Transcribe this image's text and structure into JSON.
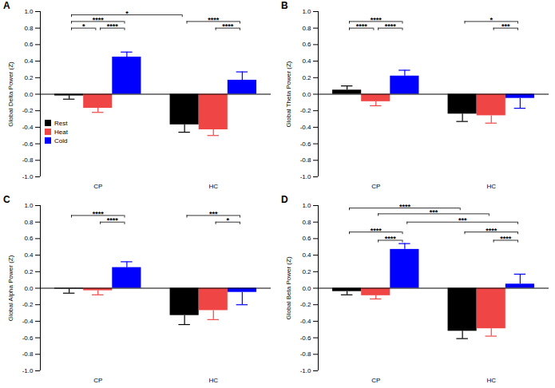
{
  "chart_data": [
    {
      "type": "bar",
      "title": "A",
      "y_label": "Global Delta Power (Z)",
      "categories": [
        "CP",
        "HC"
      ],
      "series": [
        {
          "name": "Rest",
          "color": "#000000",
          "values": [
            -0.02,
            -0.37
          ],
          "errors": [
            0.04,
            0.09
          ]
        },
        {
          "name": "Heat",
          "color": "#f04545",
          "values": [
            -0.17,
            -0.43
          ],
          "errors": [
            0.05,
            0.07
          ]
        },
        {
          "name": "Cold",
          "color": "#0000ff",
          "values": [
            0.45,
            0.17
          ],
          "errors": [
            0.06,
            0.1
          ]
        }
      ],
      "ylim": [
        -1,
        1
      ],
      "yticks": [
        {
          "value": -1,
          "label": "-1.0"
        },
        -0.8,
        -0.6,
        -0.4,
        -0.2,
        {
          "value": 0,
          "label": "0.0"
        },
        0.2,
        0.4,
        0.6,
        0.8,
        {
          "value": 1,
          "label": "1.0"
        }
      ],
      "legend": "left",
      "brackets": [
        {
          "from": [
            "CP",
            "Rest"
          ],
          "to": [
            "HC",
            "Rest"
          ],
          "y": 0.96,
          "label": "*"
        },
        {
          "from": [
            "CP",
            "Rest"
          ],
          "to": [
            "CP",
            "Cold"
          ],
          "y": 0.88,
          "label": "****"
        },
        {
          "from": [
            "CP",
            "Rest"
          ],
          "to": [
            "CP",
            "Heat"
          ],
          "y": 0.8,
          "label": "*"
        },
        {
          "from": [
            "CP",
            "Heat"
          ],
          "to": [
            "CP",
            "Cold"
          ],
          "y": 0.8,
          "label": "****"
        },
        {
          "from": [
            "HC",
            "Rest"
          ],
          "to": [
            "HC",
            "Cold"
          ],
          "y": 0.88,
          "label": "****"
        },
        {
          "from": [
            "HC",
            "Heat"
          ],
          "to": [
            "HC",
            "Cold"
          ],
          "y": 0.8,
          "label": "****"
        }
      ]
    },
    {
      "type": "bar",
      "title": "B",
      "y_label": "Global Theta Power (Z)",
      "categories": [
        "CP",
        "HC"
      ],
      "series": [
        {
          "name": "Rest",
          "color": "#000000",
          "values": [
            0.05,
            -0.24
          ],
          "errors": [
            0.05,
            0.09
          ]
        },
        {
          "name": "Heat",
          "color": "#f04545",
          "values": [
            -0.09,
            -0.26
          ],
          "errors": [
            0.05,
            0.09
          ]
        },
        {
          "name": "Cold",
          "color": "#0000ff",
          "values": [
            0.22,
            -0.05
          ],
          "errors": [
            0.07,
            0.12
          ]
        }
      ],
      "ylim": [
        -1,
        1
      ],
      "yticks": [
        {
          "value": -1,
          "label": "-1.0"
        },
        -0.8,
        -0.6,
        -0.4,
        -0.2,
        {
          "value": 0,
          "label": "0.0"
        },
        0.2,
        0.4,
        0.6,
        0.8,
        {
          "value": 1,
          "label": "1.0"
        }
      ],
      "brackets": [
        {
          "from": [
            "CP",
            "Rest"
          ],
          "to": [
            "CP",
            "Cold"
          ],
          "y": 0.88,
          "label": "****"
        },
        {
          "from": [
            "CP",
            "Rest"
          ],
          "to": [
            "CP",
            "Heat"
          ],
          "y": 0.8,
          "label": "****"
        },
        {
          "from": [
            "CP",
            "Heat"
          ],
          "to": [
            "CP",
            "Cold"
          ],
          "y": 0.8,
          "label": "****"
        },
        {
          "from": [
            "HC",
            "Rest"
          ],
          "to": [
            "HC",
            "Cold"
          ],
          "y": 0.88,
          "label": "*"
        },
        {
          "from": [
            "HC",
            "Heat"
          ],
          "to": [
            "HC",
            "Cold"
          ],
          "y": 0.8,
          "label": "***"
        }
      ]
    },
    {
      "type": "bar",
      "title": "C",
      "y_label": "Global Alpha Power (Z)",
      "categories": [
        "CP",
        "HC"
      ],
      "series": [
        {
          "name": "Rest",
          "color": "#000000",
          "values": [
            -0.01,
            -0.33
          ],
          "errors": [
            0.05,
            0.11
          ]
        },
        {
          "name": "Heat",
          "color": "#f04545",
          "values": [
            -0.03,
            -0.27
          ],
          "errors": [
            0.05,
            0.11
          ]
        },
        {
          "name": "Cold",
          "color": "#0000ff",
          "values": [
            0.25,
            -0.05
          ],
          "errors": [
            0.07,
            0.15
          ]
        }
      ],
      "ylim": [
        -1,
        1
      ],
      "yticks": [
        {
          "value": -1,
          "label": "-1.0"
        },
        -0.8,
        -0.6,
        -0.4,
        -0.2,
        {
          "value": 0,
          "label": "0.0"
        },
        0.2,
        0.4,
        0.6,
        0.8,
        {
          "value": 1,
          "label": "1.0"
        }
      ],
      "brackets": [
        {
          "from": [
            "CP",
            "Rest"
          ],
          "to": [
            "CP",
            "Cold"
          ],
          "y": 0.88,
          "label": "****"
        },
        {
          "from": [
            "CP",
            "Heat"
          ],
          "to": [
            "CP",
            "Cold"
          ],
          "y": 0.8,
          "label": "****"
        },
        {
          "from": [
            "HC",
            "Rest"
          ],
          "to": [
            "HC",
            "Cold"
          ],
          "y": 0.88,
          "label": "***"
        },
        {
          "from": [
            "HC",
            "Heat"
          ],
          "to": [
            "HC",
            "Cold"
          ],
          "y": 0.8,
          "label": "*"
        }
      ]
    },
    {
      "type": "bar",
      "title": "D",
      "y_label": "Global Beta Power (Z)",
      "categories": [
        "CP",
        "HC"
      ],
      "series": [
        {
          "name": "Rest",
          "color": "#000000",
          "values": [
            -0.04,
            -0.52
          ],
          "errors": [
            0.04,
            0.09
          ]
        },
        {
          "name": "Heat",
          "color": "#f04545",
          "values": [
            -0.09,
            -0.49
          ],
          "errors": [
            0.04,
            0.09
          ]
        },
        {
          "name": "Cold",
          "color": "#0000ff",
          "values": [
            0.47,
            0.05
          ],
          "errors": [
            0.07,
            0.12
          ]
        }
      ],
      "ylim": [
        -1,
        1
      ],
      "yticks": [
        {
          "value": -1,
          "label": "-1.0"
        },
        -0.8,
        -0.6,
        -0.4,
        -0.2,
        {
          "value": 0,
          "label": "0.0"
        },
        0.2,
        0.4,
        0.6,
        0.8,
        {
          "value": 1,
          "label": "1.0"
        }
      ],
      "brackets": [
        {
          "from": [
            "CP",
            "Rest"
          ],
          "to": [
            "HC",
            "Rest"
          ],
          "y": 0.97,
          "label": "****"
        },
        {
          "from": [
            "CP",
            "Heat"
          ],
          "to": [
            "HC",
            "Heat"
          ],
          "y": 0.9,
          "label": "***"
        },
        {
          "from": [
            "CP",
            "Cold"
          ],
          "to": [
            "HC",
            "Cold"
          ],
          "y": 0.8,
          "label": "***"
        },
        {
          "from": [
            "CP",
            "Rest"
          ],
          "to": [
            "CP",
            "Cold"
          ],
          "y": 0.68,
          "label": "****"
        },
        {
          "from": [
            "CP",
            "Heat"
          ],
          "to": [
            "CP",
            "Cold"
          ],
          "y": 0.58,
          "label": "****"
        },
        {
          "from": [
            "HC",
            "Rest"
          ],
          "to": [
            "HC",
            "Cold"
          ],
          "y": 0.68,
          "label": "****"
        },
        {
          "from": [
            "HC",
            "Heat"
          ],
          "to": [
            "HC",
            "Cold"
          ],
          "y": 0.58,
          "label": "****"
        }
      ]
    }
  ]
}
